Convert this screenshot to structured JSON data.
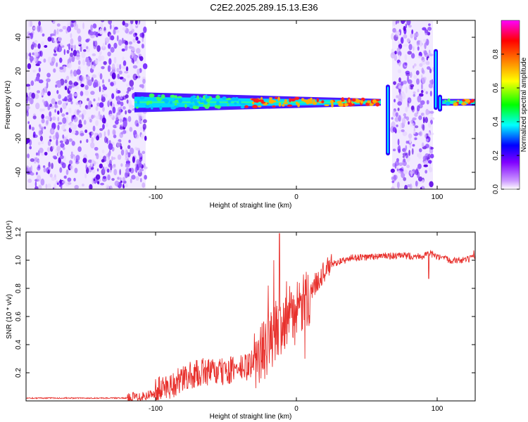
{
  "title": "C2E2.2025.289.15.13.E36",
  "chart_data": [
    {
      "id": "spectrogram",
      "type": "heatmap",
      "title": "C2E2.2025.289.15.13.E36",
      "xlabel": "Height of straight line (km)",
      "ylabel": "Frequency (Hz)",
      "xlim": [
        -192,
        127
      ],
      "ylim": [
        -50,
        50
      ],
      "xticks": [
        -100,
        0,
        100
      ],
      "yticks": [
        -40,
        -20,
        0,
        20,
        40
      ],
      "xtick_labels": [
        "-100",
        "0",
        "100"
      ],
      "ytick_labels": [
        "-40",
        "-20",
        "0",
        "20",
        "40"
      ],
      "colorbar": {
        "label": "Normalized spectral amplitude",
        "range": [
          0,
          1
        ],
        "ticks": [
          0.0,
          0.2,
          0.4,
          0.6,
          0.8
        ],
        "tick_labels": [
          "0.0",
          "0.2",
          "0.4",
          "0.6",
          "0.8"
        ],
        "colors": [
          "#ffffff",
          "#cc99ff",
          "#8000ff",
          "#0000ff",
          "#00ffff",
          "#00ff00",
          "#ffff00",
          "#ff8000",
          "#ff0000",
          "#ff00ff"
        ]
      },
      "regions": [
        {
          "name": "noise-left",
          "x_range": [
            -192,
            -107
          ],
          "freq_range": [
            -50,
            50
          ],
          "amplitude_range": [
            0.0,
            0.3
          ]
        },
        {
          "name": "carrier-band",
          "x_range": [
            -115,
            60
          ],
          "freq_center": 1.5,
          "freq_halfwidth_start": 6,
          "freq_halfwidth_end": 2
        },
        {
          "name": "noise-middle",
          "x_range": [
            68,
            97
          ],
          "freq_range": [
            -50,
            50
          ],
          "amplitude_range": [
            0.0,
            0.3
          ]
        },
        {
          "name": "carrier-right",
          "x_range": [
            101,
            127
          ],
          "freq_center": 1.5,
          "freq_halfwidth_start": 2,
          "freq_halfwidth_end": 2
        }
      ],
      "spikes": [
        {
          "x": 65,
          "freq_range": [
            -30,
            12
          ]
        },
        {
          "x": 99,
          "freq_range": [
            -3,
            33
          ]
        },
        {
          "x": 102,
          "freq_range": [
            -4,
            6
          ]
        }
      ]
    },
    {
      "id": "snr",
      "type": "line",
      "xlabel": "Height of straight line (km)",
      "ylabel": "SNR (10 * v/v)",
      "multiplier": "(x10⁴)",
      "xlim": [
        -192,
        127
      ],
      "ylim": [
        0,
        1.2
      ],
      "xticks": [
        -100,
        0,
        100
      ],
      "yticks": [
        0.2,
        0.4,
        0.6,
        0.8,
        1.0,
        1.2
      ],
      "xtick_labels": [
        "-100",
        "0",
        "100"
      ],
      "ytick_labels": [
        "0.2",
        "0.4",
        "0.6",
        "0.8",
        "1.0",
        "1.2"
      ],
      "series": [
        {
          "name": "SNR",
          "color": "#e8312d",
          "x": [
            -192,
            -150,
            -120,
            -105,
            -95,
            -85,
            -75,
            -65,
            -55,
            -45,
            -35,
            -28,
            -20,
            -15,
            -10,
            -5,
            0,
            5,
            10,
            15,
            20,
            25,
            30,
            35,
            40,
            45,
            50,
            60,
            70,
            80,
            90,
            95,
            100,
            110,
            120,
            127
          ],
          "values": [
            0.02,
            0.02,
            0.02,
            0.04,
            0.09,
            0.13,
            0.18,
            0.21,
            0.2,
            0.22,
            0.24,
            0.3,
            0.4,
            0.5,
            0.56,
            0.6,
            0.62,
            0.68,
            0.77,
            0.86,
            0.92,
            0.97,
            0.99,
            1.0,
            1.02,
            1.02,
            1.02,
            1.03,
            1.03,
            1.03,
            1.03,
            1.05,
            1.02,
            1.0,
            1.0,
            1.02
          ],
          "spikes": [
            {
              "x": -12,
              "value": 1.19
            },
            {
              "x": -16,
              "value": 1.0
            },
            {
              "x": -20,
              "value": 0.82
            },
            {
              "x": -7,
              "value": 0.85
            },
            {
              "x": 6,
              "value": 0.3
            },
            {
              "x": 94,
              "value": 0.87
            },
            {
              "x": 126,
              "value": 1.07
            }
          ]
        }
      ]
    }
  ]
}
